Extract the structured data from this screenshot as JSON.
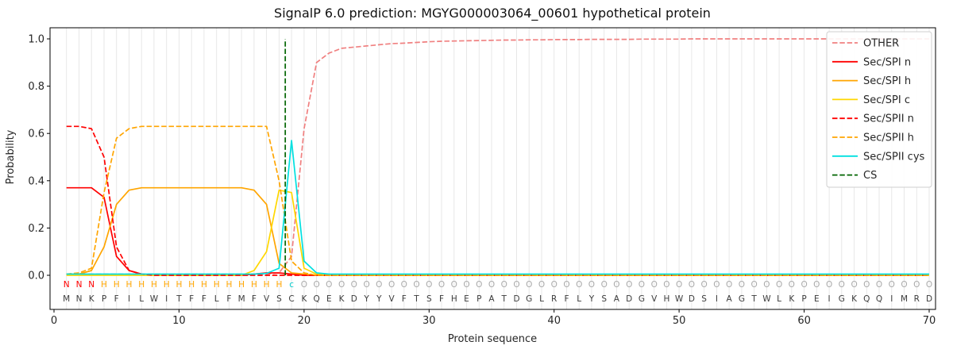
{
  "chart_data": {
    "type": "line",
    "title": "SignalP 6.0 prediction: MGYG000003064_00601 hypothetical protein",
    "xlabel": "Protein sequence",
    "ylabel": "Probability",
    "xticks": [
      0,
      10,
      20,
      30,
      40,
      50,
      60,
      70
    ],
    "yticks": [
      0.0,
      0.2,
      0.4,
      0.6,
      0.8,
      1.0
    ],
    "xlim": [
      -0.3,
      70.5
    ],
    "ylim": [
      -0.145,
      1.047
    ],
    "grid": {
      "vertical_per_residue": true,
      "color": "#e5e5e5"
    },
    "legend": {
      "position": "upper right"
    },
    "sequence": "MNKPFILWITFFLFMFVSCKQEKDYYVFTSFHEPATDGLRFLYSADGVHWDSIAGTWLKPEIGKQQIMRD",
    "region_labels": "NNNHHHHHHHHHHHHHHHcOOOOOOOOOOOOOOOOOOOOOOOOOOOOOOOOOOOOOOOOOOOOOOOOOOO",
    "label_colors": {
      "N": "#ff0000",
      "H": "#ffa500",
      "c": "#00cccc",
      "C": "#00cccc",
      "O": "#aaaaaa"
    },
    "residue_text_color": "#3c3c3c",
    "cs": {
      "name": "CS",
      "color": "#006400",
      "dash": "dashed",
      "position": 18.5
    },
    "series": [
      {
        "name": "OTHER",
        "color": "#f08080",
        "dash": "dashed",
        "values": [
          0.005,
          0.005,
          0.005,
          0.005,
          0.005,
          0.005,
          0.005,
          0.005,
          0.005,
          0.005,
          0.005,
          0.005,
          0.005,
          0.005,
          0.005,
          0.005,
          0.005,
          0.01,
          0.08,
          0.62,
          0.9,
          0.94,
          0.96,
          0.965,
          0.97,
          0.975,
          0.98,
          0.982,
          0.985,
          0.988,
          0.99,
          0.991,
          0.992,
          0.993,
          0.994,
          0.995,
          0.995,
          0.996,
          0.996,
          0.997,
          0.997,
          0.997,
          0.998,
          0.998,
          0.998,
          0.998,
          0.999,
          0.999,
          0.999,
          0.999,
          1.0,
          1.0,
          1.0,
          1.0,
          1.0,
          1.0,
          1.0,
          1.0,
          1.0,
          1.0,
          1.0,
          1.0,
          1.0,
          1.0,
          1.0,
          1.0,
          1.0,
          1.0,
          1.0,
          1.0
        ]
      },
      {
        "name": "Sec/SPI n",
        "color": "#ff0000",
        "dash": "solid",
        "values": [
          0.37,
          0.37,
          0.37,
          0.33,
          0.08,
          0.02,
          0.005,
          0,
          0,
          0,
          0,
          0,
          0,
          0,
          0,
          0.005,
          0.01,
          0.01,
          0.005,
          0,
          0,
          0,
          0,
          0,
          0,
          0,
          0,
          0,
          0,
          0,
          0,
          0,
          0,
          0,
          0,
          0,
          0,
          0,
          0,
          0,
          0,
          0,
          0,
          0,
          0,
          0,
          0,
          0,
          0,
          0,
          0,
          0,
          0,
          0,
          0,
          0,
          0,
          0,
          0,
          0,
          0,
          0,
          0,
          0,
          0,
          0,
          0,
          0,
          0,
          0
        ]
      },
      {
        "name": "Sec/SPI h",
        "color": "#ffa500",
        "dash": "solid",
        "values": [
          0.005,
          0.005,
          0.02,
          0.12,
          0.3,
          0.36,
          0.37,
          0.37,
          0.37,
          0.37,
          0.37,
          0.37,
          0.37,
          0.37,
          0.37,
          0.36,
          0.3,
          0.05,
          0.01,
          0.005,
          0,
          0,
          0,
          0,
          0,
          0,
          0,
          0,
          0,
          0,
          0,
          0,
          0,
          0,
          0,
          0,
          0,
          0,
          0,
          0,
          0,
          0,
          0,
          0,
          0,
          0,
          0,
          0,
          0,
          0,
          0,
          0,
          0,
          0,
          0,
          0,
          0,
          0,
          0,
          0,
          0,
          0,
          0,
          0,
          0,
          0,
          0,
          0,
          0,
          0
        ]
      },
      {
        "name": "Sec/SPI c",
        "color": "#ffd700",
        "dash": "solid",
        "values": [
          0,
          0,
          0,
          0,
          0,
          0,
          0,
          0,
          0,
          0,
          0,
          0,
          0,
          0,
          0,
          0.02,
          0.1,
          0.36,
          0.35,
          0.03,
          0.005,
          0,
          0,
          0,
          0,
          0,
          0,
          0,
          0,
          0,
          0,
          0,
          0,
          0,
          0,
          0,
          0,
          0,
          0,
          0,
          0,
          0,
          0,
          0,
          0,
          0,
          0,
          0,
          0,
          0,
          0,
          0,
          0,
          0,
          0,
          0,
          0,
          0,
          0,
          0,
          0,
          0,
          0,
          0,
          0,
          0,
          0,
          0,
          0,
          0
        ]
      },
      {
        "name": "Sec/SPII n",
        "color": "#ff0000",
        "dash": "dashed",
        "values": [
          0.63,
          0.63,
          0.62,
          0.5,
          0.12,
          0.02,
          0.005,
          0,
          0,
          0,
          0,
          0,
          0,
          0,
          0,
          0,
          0,
          0,
          0,
          0,
          0,
          0,
          0,
          0,
          0,
          0,
          0,
          0,
          0,
          0,
          0,
          0,
          0,
          0,
          0,
          0,
          0,
          0,
          0,
          0,
          0,
          0,
          0,
          0,
          0,
          0,
          0,
          0,
          0,
          0,
          0,
          0,
          0,
          0,
          0,
          0,
          0,
          0,
          0,
          0,
          0,
          0,
          0,
          0,
          0,
          0,
          0,
          0,
          0,
          0
        ]
      },
      {
        "name": "Sec/SPII h",
        "color": "#ffa500",
        "dash": "dashed",
        "values": [
          0.005,
          0.01,
          0.03,
          0.35,
          0.58,
          0.62,
          0.63,
          0.63,
          0.63,
          0.63,
          0.63,
          0.63,
          0.63,
          0.63,
          0.63,
          0.63,
          0.63,
          0.4,
          0.06,
          0.01,
          0,
          0,
          0,
          0,
          0,
          0,
          0,
          0,
          0,
          0,
          0,
          0,
          0,
          0,
          0,
          0,
          0,
          0,
          0,
          0,
          0,
          0,
          0,
          0,
          0,
          0,
          0,
          0,
          0,
          0,
          0,
          0,
          0,
          0,
          0,
          0,
          0,
          0,
          0,
          0,
          0,
          0,
          0,
          0,
          0,
          0,
          0,
          0,
          0,
          0
        ]
      },
      {
        "name": "Sec/SPII cys",
        "color": "#00e0e0",
        "dash": "solid",
        "values": [
          0.005,
          0.005,
          0.005,
          0.005,
          0.005,
          0.005,
          0.005,
          0.005,
          0.005,
          0.005,
          0.005,
          0.005,
          0.005,
          0.005,
          0.005,
          0.005,
          0.008,
          0.03,
          0.57,
          0.06,
          0.01,
          0.005,
          0.005,
          0.005,
          0.005,
          0.005,
          0.005,
          0.005,
          0.005,
          0.005,
          0.005,
          0.005,
          0.005,
          0.005,
          0.005,
          0.005,
          0.005,
          0.005,
          0.005,
          0.005,
          0.005,
          0.005,
          0.005,
          0.005,
          0.005,
          0.005,
          0.005,
          0.005,
          0.005,
          0.005,
          0.005,
          0.005,
          0.005,
          0.005,
          0.005,
          0.005,
          0.005,
          0.005,
          0.005,
          0.005,
          0.005,
          0.005,
          0.005,
          0.005,
          0.005,
          0.005,
          0.005,
          0.005,
          0.005,
          0.005
        ]
      }
    ]
  }
}
